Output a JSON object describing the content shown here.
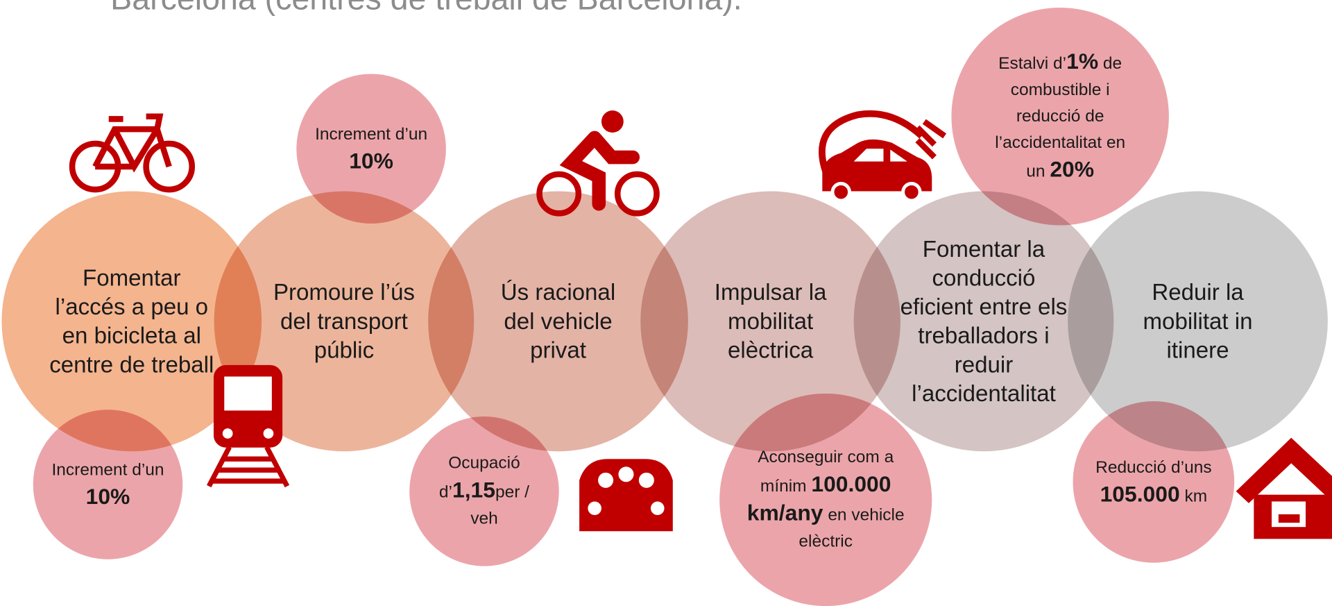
{
  "title": "Barcelona (centres de treball de Barcelona).",
  "goals": [
    {
      "label": "Fomentar l’accés a peu o en bicicleta al centre de treball"
    },
    {
      "label": "Promoure l’ús del transport públic"
    },
    {
      "label": "Ús racional del vehicle privat"
    },
    {
      "label": "Impulsar la mobilitat elèctrica"
    },
    {
      "label": "Fomentar la conducció eficient entre els treballadors i reduir l’accidentalitat"
    },
    {
      "label": "Reduir la mobilitat in itinere"
    }
  ],
  "bubbles": [
    {
      "parts": [
        {
          "text": "Increment d’un ",
          "bold": false
        },
        {
          "text": "10%",
          "bold": true
        }
      ]
    },
    {
      "parts": [
        {
          "text": "Increment d’un ",
          "bold": false
        },
        {
          "text": "10%",
          "bold": true
        }
      ]
    },
    {
      "parts": [
        {
          "text": "Ocupació d’",
          "bold": false
        },
        {
          "text": "1,15",
          "bold": true
        },
        {
          "text": "per / veh",
          "bold": false
        }
      ]
    },
    {
      "parts": [
        {
          "text": "Aconseguir com a mínim ",
          "bold": false
        },
        {
          "text": "100.000 km/any",
          "bold": true
        },
        {
          "text": " en vehicle elèctric",
          "bold": false
        }
      ]
    },
    {
      "parts": [
        {
          "text": "Estalvi d’",
          "bold": false
        },
        {
          "text": "1%",
          "bold": true
        },
        {
          "text": " de combustible i reducció de l’accidentalitat en un ",
          "bold": false
        },
        {
          "text": "20%",
          "bold": true
        }
      ]
    },
    {
      "parts": [
        {
          "text": "Reducció d’uns ",
          "bold": false
        },
        {
          "text": "105.000",
          "bold": true
        },
        {
          "text": " km",
          "bold": false
        }
      ]
    }
  ]
}
